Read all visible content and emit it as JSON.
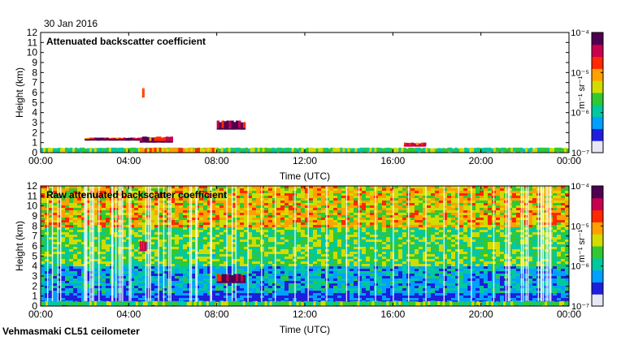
{
  "header": {
    "date": "30 Jan 2016",
    "instrument": "Vehmasmaki CL51 ceilometer"
  },
  "colorbar": {
    "unit_label": "m⁻¹ sr⁻¹",
    "tick_labels": [
      "10⁻⁷",
      "10⁻⁶",
      "10⁻⁵",
      "10⁻⁴"
    ],
    "exponents": [
      -7,
      -6,
      -5,
      -4
    ],
    "scale": "log",
    "colors": [
      "#e6e6f5",
      "#1e1edc",
      "#00a0ff",
      "#00c8a0",
      "#32c832",
      "#d2dc00",
      "#ffa000",
      "#ff2800",
      "#c80050",
      "#500050"
    ]
  },
  "chart_data": [
    {
      "type": "heatmap",
      "title": "Attenuated backscatter coefficient",
      "xlabel": "Time (UTC)",
      "ylabel": "Height (km)",
      "x_ticks": [
        "00:00",
        "04:00",
        "08:00",
        "12:00",
        "16:00",
        "20:00",
        "00:00"
      ],
      "xlim_hours": [
        0,
        24
      ],
      "ylim_km": [
        0,
        12
      ],
      "y_ticks": [
        0,
        1,
        2,
        3,
        4,
        5,
        6,
        7,
        8,
        9,
        10,
        11,
        12
      ],
      "colorscale": "log",
      "value_range": [
        1e-07,
        0.0001
      ],
      "features": [
        {
          "name": "boundary layer aerosol",
          "time_hours": [
            0,
            24
          ],
          "height_km": [
            0,
            0.5
          ],
          "value": 2e-06
        },
        {
          "name": "high aerosol near surface",
          "time_hours": [
            4.5,
            8.0
          ],
          "height_km": [
            0,
            0.5
          ],
          "value": 1e-05
        },
        {
          "name": "low cloud base",
          "time_hours": [
            2.0,
            4.5
          ],
          "height_km": [
            1.2,
            1.5
          ],
          "value": 3e-05
        },
        {
          "name": "cloud",
          "time_hours": [
            4.5,
            6.0
          ],
          "height_km": [
            1.0,
            1.6
          ],
          "value": 3e-05
        },
        {
          "name": "mid-level cloud",
          "time_hours": [
            8.0,
            9.3
          ],
          "height_km": [
            2.3,
            3.2
          ],
          "value": 5e-05
        },
        {
          "name": "isolated cloud",
          "time_hours": [
            4.6,
            4.7
          ],
          "height_km": [
            5.5,
            6.5
          ],
          "value": 1e-05
        },
        {
          "name": "cloud base",
          "time_hours": [
            16.5,
            17.5
          ],
          "height_km": [
            0.6,
            1.0
          ],
          "value": 2e-05
        }
      ]
    },
    {
      "type": "heatmap",
      "title": "Raw attenuated backscatter coefficient",
      "xlabel": "Time (UTC)",
      "ylabel": "Height (km)",
      "x_ticks": [
        "00:00",
        "04:00",
        "08:00",
        "12:00",
        "16:00",
        "20:00",
        "00:00"
      ],
      "xlim_hours": [
        0,
        24
      ],
      "ylim_km": [
        0,
        12
      ],
      "y_ticks": [
        0,
        1,
        2,
        3,
        4,
        5,
        6,
        7,
        8,
        9,
        10,
        11,
        12
      ],
      "colorscale": "log",
      "value_range": [
        1e-07,
        0.0001
      ],
      "features": [
        {
          "name": "noise increasing with height",
          "time_hours": [
            0,
            24
          ],
          "height_km": [
            0,
            12
          ],
          "value": 3e-06
        },
        {
          "name": "boundary layer aerosol",
          "time_hours": [
            0,
            24
          ],
          "height_km": [
            0,
            0.5
          ],
          "value": 2e-06
        },
        {
          "name": "cloud",
          "time_hours": [
            4.5,
            4.8
          ],
          "height_km": [
            5.5,
            6.5
          ],
          "value": 2e-05
        },
        {
          "name": "mid-level cloud",
          "time_hours": [
            8.0,
            9.3
          ],
          "height_km": [
            2.3,
            3.2
          ],
          "value": 5e-05
        }
      ]
    }
  ]
}
